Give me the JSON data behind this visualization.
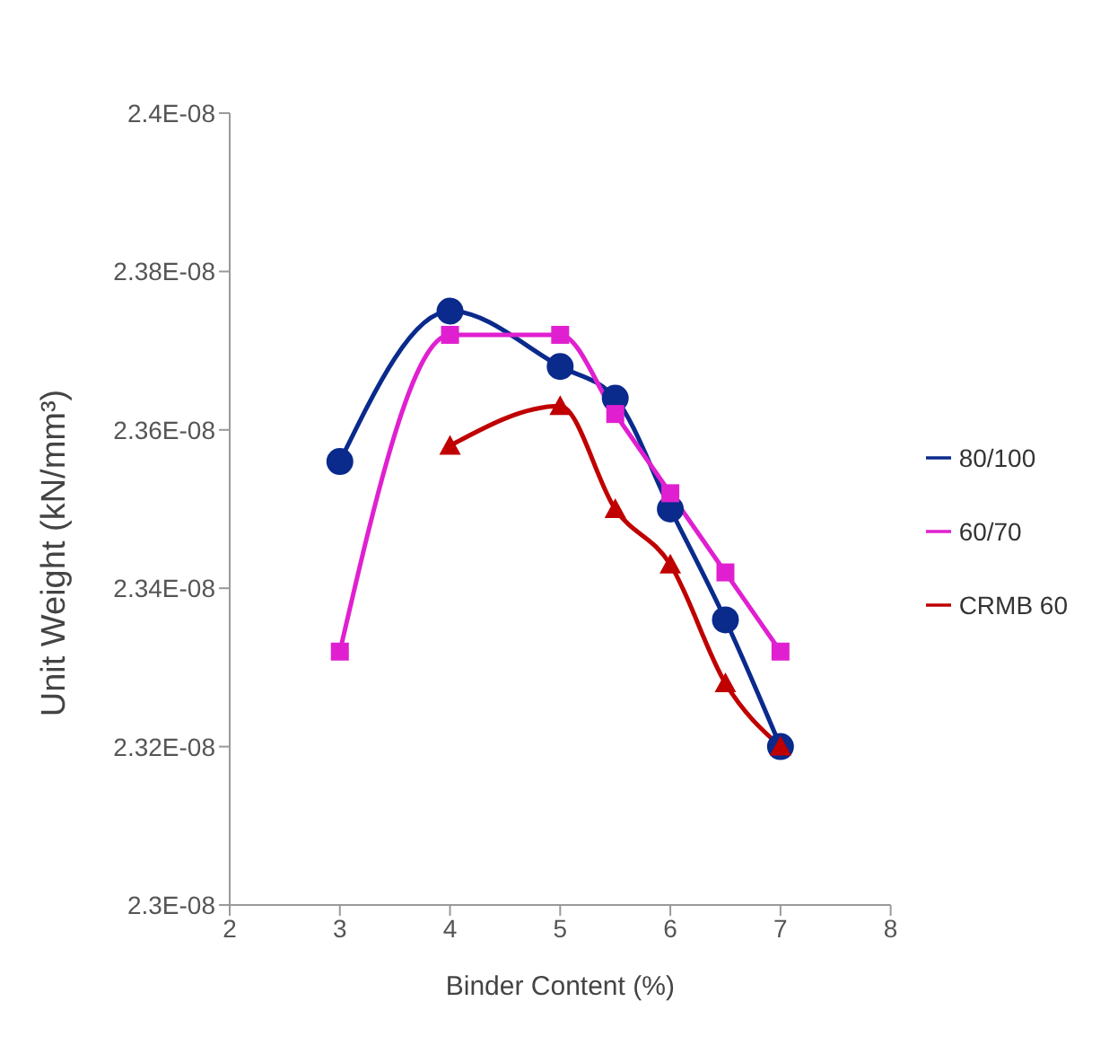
{
  "chart_data": {
    "type": "line",
    "xlabel": "Binder Content (%)",
    "ylabel": "Unit Weight (kN/mm³)",
    "x": [
      3,
      4,
      5,
      5.5,
      6,
      6.5,
      7
    ],
    "series": [
      {
        "name": "80/100",
        "color": "#0a2a8c",
        "marker": "circle",
        "values": [
          2.356e-08,
          2.375e-08,
          2.368e-08,
          2.364e-08,
          2.35e-08,
          2.336e-08,
          2.32e-08
        ]
      },
      {
        "name": "60/70",
        "color": "#e020d0",
        "marker": "square",
        "values": [
          2.332e-08,
          2.372e-08,
          2.372e-08,
          2.362e-08,
          2.352e-08,
          2.342e-08,
          2.332e-08
        ]
      },
      {
        "name": "CRMB 60",
        "color": "#c00000",
        "marker": "triangle",
        "values": [
          null,
          2.358e-08,
          2.363e-08,
          2.35e-08,
          2.343e-08,
          2.328e-08,
          2.32e-08
        ]
      }
    ],
    "xlim": [
      2,
      8
    ],
    "xticks": [
      2,
      3,
      4,
      5,
      6,
      7,
      8
    ],
    "ylim": [
      2.3e-08,
      2.4e-08
    ],
    "yticks": [
      {
        "value": 2.3e-08,
        "label": "2.3E-08"
      },
      {
        "value": 2.32e-08,
        "label": "2.32E-08"
      },
      {
        "value": 2.34e-08,
        "label": "2.34E-08"
      },
      {
        "value": 2.36e-08,
        "label": "2.36E-08"
      },
      {
        "value": 2.38e-08,
        "label": "2.38E-08"
      },
      {
        "value": 2.4e-08,
        "label": "2.4E-08"
      }
    ],
    "grid": false,
    "legend": "right",
    "line_style": "solid"
  }
}
